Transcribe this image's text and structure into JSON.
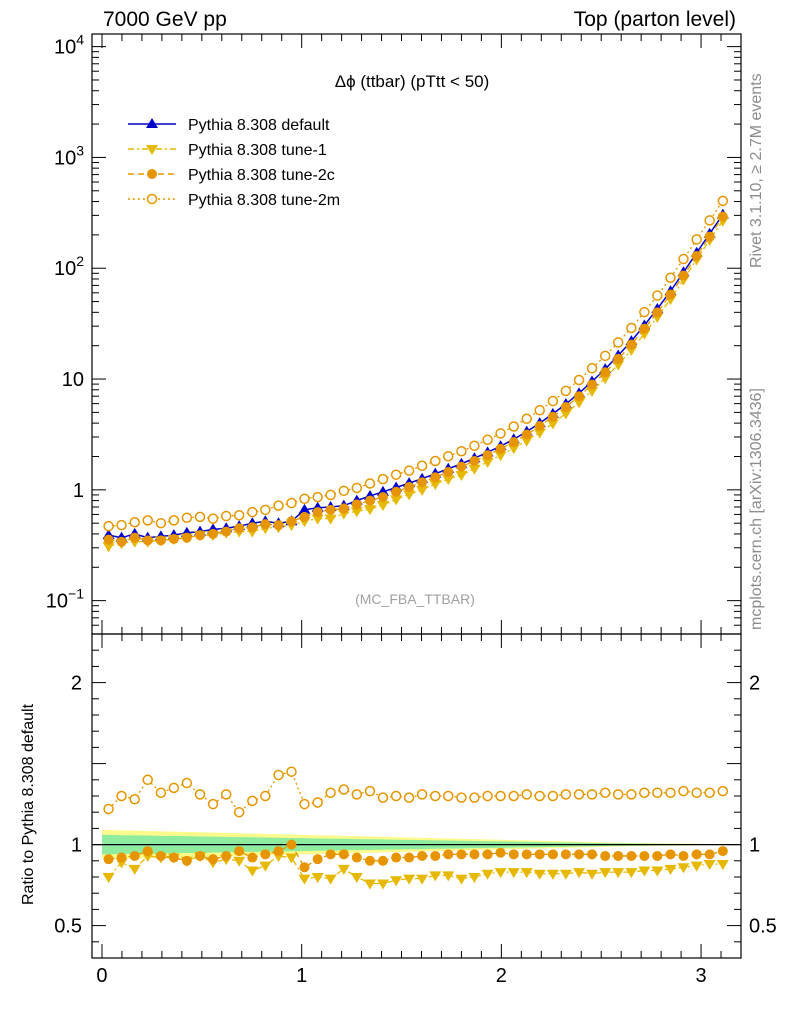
{
  "header": {
    "left": "7000 GeV pp",
    "right": "Top (parton level)"
  },
  "side_labels": {
    "top": "Rivet 3.1.10, ≥ 2.7M events",
    "bottom": "mcplots.cern.ch [arXiv:1306.3436]"
  },
  "chart_data": [
    {
      "type": "line",
      "panel": "main",
      "title": "Δϕ (ttbar) (pTtt < 50)",
      "watermark": "(MC_FBA_TTBAR)",
      "yscale": "log",
      "xlim": [
        -0.05,
        3.2
      ],
      "ylim": [
        0.05,
        13000
      ],
      "y_tick_labels": [
        {
          "v": 0.1,
          "base": "10",
          "exp": "−1"
        },
        {
          "v": 1,
          "base": "1",
          "exp": ""
        },
        {
          "v": 10,
          "base": "10",
          "exp": ""
        },
        {
          "v": 100,
          "base": "10",
          "exp": "2"
        },
        {
          "v": 1000,
          "base": "10",
          "exp": "3"
        },
        {
          "v": 10000,
          "base": "10",
          "exp": "4"
        }
      ],
      "legend_position": "top-left",
      "x": [
        0.033,
        0.098,
        0.164,
        0.229,
        0.295,
        0.36,
        0.425,
        0.491,
        0.556,
        0.622,
        0.687,
        0.753,
        0.818,
        0.884,
        0.949,
        1.014,
        1.08,
        1.145,
        1.211,
        1.276,
        1.342,
        1.407,
        1.473,
        1.538,
        1.603,
        1.669,
        1.734,
        1.8,
        1.865,
        1.931,
        1.996,
        2.062,
        2.127,
        2.192,
        2.258,
        2.323,
        2.389,
        2.454,
        2.52,
        2.585,
        2.651,
        2.716,
        2.781,
        2.847,
        2.912,
        2.978,
        3.043,
        3.109
      ],
      "series": [
        {
          "name": "Pythia 8.308 default",
          "color": "#0000cc",
          "marker": "triangle-up",
          "line": "solid",
          "values": [
            0.39,
            0.37,
            0.4,
            0.37,
            0.38,
            0.39,
            0.41,
            0.42,
            0.44,
            0.45,
            0.47,
            0.5,
            0.52,
            0.5,
            0.52,
            0.66,
            0.69,
            0.7,
            0.72,
            0.8,
            0.88,
            0.96,
            1.05,
            1.15,
            1.26,
            1.4,
            1.55,
            1.72,
            1.93,
            2.18,
            2.48,
            2.86,
            3.35,
            4.0,
            4.85,
            5.95,
            7.45,
            9.5,
            12.3,
            16.3,
            22,
            30.5,
            43,
            62,
            92,
            138,
            205,
            305
          ]
        },
        {
          "name": "Pythia 8.308 tune-1",
          "color": "#e6b800",
          "marker": "triangle-down",
          "line": "dash-dot",
          "values": [
            0.31,
            0.33,
            0.34,
            0.34,
            0.35,
            0.36,
            0.37,
            0.39,
            0.39,
            0.41,
            0.42,
            0.42,
            0.45,
            0.46,
            0.48,
            0.52,
            0.55,
            0.55,
            0.61,
            0.64,
            0.67,
            0.73,
            0.82,
            0.91,
            1.0,
            1.13,
            1.25,
            1.36,
            1.55,
            1.79,
            2.05,
            2.38,
            2.78,
            3.28,
            3.98,
            4.89,
            6.15,
            7.8,
            10.2,
            13.5,
            18.3,
            25.6,
            36.3,
            52.6,
            79,
            120,
            180,
            268
          ]
        },
        {
          "name": "Pythia 8.308 tune-2c",
          "color": "#e69500",
          "marker": "circle-filled",
          "line": "dashed",
          "values": [
            0.355,
            0.34,
            0.37,
            0.35,
            0.35,
            0.36,
            0.37,
            0.39,
            0.4,
            0.42,
            0.45,
            0.46,
            0.49,
            0.48,
            0.52,
            0.57,
            0.63,
            0.66,
            0.68,
            0.74,
            0.8,
            0.86,
            0.96,
            1.06,
            1.17,
            1.3,
            1.45,
            1.62,
            1.82,
            2.06,
            2.35,
            2.7,
            3.16,
            3.77,
            4.57,
            5.6,
            7.0,
            8.9,
            11.5,
            15.2,
            20.5,
            28.5,
            40,
            58,
            86,
            129,
            193,
            293
          ]
        },
        {
          "name": "Pythia 8.308 tune-2m",
          "color": "#e69500",
          "marker": "circle-open",
          "line": "dotted",
          "values": [
            0.47,
            0.48,
            0.51,
            0.53,
            0.5,
            0.53,
            0.56,
            0.57,
            0.55,
            0.58,
            0.59,
            0.63,
            0.66,
            0.72,
            0.76,
            0.83,
            0.86,
            0.9,
            0.98,
            1.04,
            1.14,
            1.25,
            1.37,
            1.49,
            1.65,
            1.82,
            2.01,
            2.23,
            2.5,
            2.83,
            3.23,
            3.73,
            4.38,
            5.23,
            6.33,
            7.81,
            9.8,
            12.5,
            16.2,
            21.4,
            28.9,
            40.2,
            56.7,
            82,
            121,
            182,
            270,
            405
          ]
        }
      ]
    },
    {
      "type": "line",
      "panel": "ratio",
      "ylabel": "Ratio to Pythia 8.308 default",
      "xlim": [
        -0.05,
        3.2
      ],
      "ylim": [
        0.3,
        2.3
      ],
      "x_ticks": [
        0,
        1,
        2,
        3
      ],
      "y_ticks": [
        0.5,
        1,
        2
      ],
      "band": {
        "yellow_half_width": [
          0.09,
          0.088,
          0.086,
          0.084,
          0.082,
          0.08,
          0.078,
          0.076,
          0.074,
          0.072,
          0.07,
          0.068,
          0.066,
          0.064,
          0.062,
          0.06,
          0.058,
          0.056,
          0.054,
          0.052,
          0.05,
          0.048,
          0.046,
          0.044,
          0.042,
          0.04,
          0.038,
          0.036,
          0.034,
          0.032,
          0.03,
          0.028,
          0.026,
          0.024,
          0.022,
          0.02,
          0.018,
          0.016,
          0.014,
          0.012,
          0.01,
          0.009,
          0.008,
          0.007,
          0.006,
          0.005,
          0.004,
          0.004
        ],
        "green_half_width": [
          0.06,
          0.058,
          0.057,
          0.056,
          0.054,
          0.053,
          0.052,
          0.05,
          0.049,
          0.048,
          0.046,
          0.045,
          0.044,
          0.042,
          0.041,
          0.04,
          0.038,
          0.037,
          0.036,
          0.034,
          0.033,
          0.032,
          0.03,
          0.029,
          0.028,
          0.026,
          0.025,
          0.024,
          0.022,
          0.021,
          0.02,
          0.018,
          0.017,
          0.016,
          0.014,
          0.013,
          0.012,
          0.01,
          0.009,
          0.008,
          0.007,
          0.006,
          0.005,
          0.004,
          0.004,
          0.003,
          0.003,
          0.003
        ]
      },
      "series": [
        {
          "name": "Pythia 8.308 tune-1",
          "values": [
            0.8,
            0.89,
            0.85,
            0.93,
            0.92,
            0.92,
            0.9,
            0.93,
            0.89,
            0.91,
            0.9,
            0.84,
            0.87,
            0.93,
            0.92,
            0.79,
            0.8,
            0.79,
            0.85,
            0.8,
            0.76,
            0.76,
            0.78,
            0.79,
            0.79,
            0.81,
            0.81,
            0.79,
            0.8,
            0.82,
            0.83,
            0.83,
            0.83,
            0.82,
            0.82,
            0.82,
            0.83,
            0.82,
            0.83,
            0.83,
            0.83,
            0.84,
            0.84,
            0.85,
            0.86,
            0.87,
            0.88,
            0.88
          ]
        },
        {
          "name": "Pythia 8.308 tune-2c",
          "values": [
            0.91,
            0.92,
            0.93,
            0.96,
            0.93,
            0.92,
            0.9,
            0.93,
            0.91,
            0.93,
            0.96,
            0.92,
            0.94,
            0.96,
            1.0,
            0.86,
            0.91,
            0.94,
            0.94,
            0.92,
            0.9,
            0.9,
            0.92,
            0.92,
            0.93,
            0.93,
            0.94,
            0.94,
            0.94,
            0.94,
            0.95,
            0.94,
            0.94,
            0.94,
            0.94,
            0.94,
            0.94,
            0.94,
            0.93,
            0.93,
            0.93,
            0.93,
            0.93,
            0.94,
            0.93,
            0.94,
            0.94,
            0.96
          ]
        },
        {
          "name": "Pythia 8.308 tune-2m",
          "values": [
            1.22,
            1.3,
            1.28,
            1.4,
            1.32,
            1.35,
            1.38,
            1.31,
            1.25,
            1.31,
            1.2,
            1.27,
            1.3,
            1.43,
            1.45,
            1.25,
            1.26,
            1.32,
            1.34,
            1.31,
            1.33,
            1.29,
            1.3,
            1.29,
            1.31,
            1.3,
            1.3,
            1.29,
            1.29,
            1.3,
            1.3,
            1.3,
            1.31,
            1.3,
            1.3,
            1.31,
            1.31,
            1.31,
            1.32,
            1.31,
            1.31,
            1.32,
            1.32,
            1.32,
            1.33,
            1.32,
            1.32,
            1.33
          ]
        }
      ]
    }
  ]
}
